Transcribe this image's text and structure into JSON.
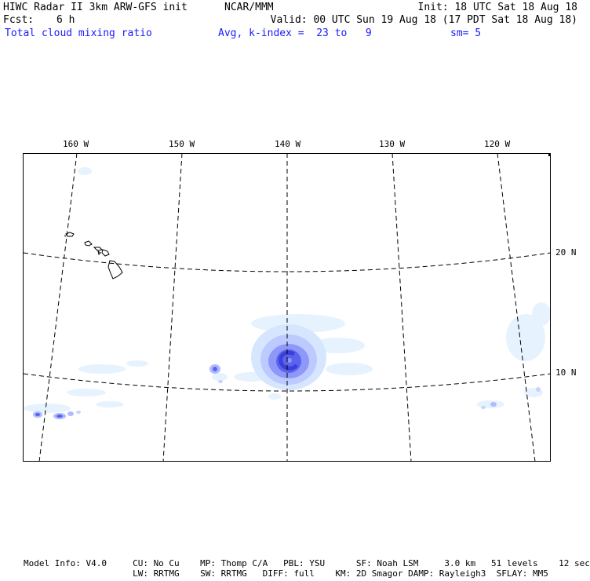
{
  "header": {
    "title": "HIWC Radar II 3km ARW-GFS init",
    "org": "NCAR/MMM",
    "init": "Init: 18 UTC Sat 18 Aug 18",
    "fcst_label": "Fcst:",
    "fcst_value": "6 h",
    "valid": "Valid: 00 UTC Sun 19 Aug 18 (17 PDT Sat 18 Aug 18)",
    "field": "Total cloud mixing ratio",
    "avg": "Avg, k-index =  23 to   9",
    "smoothing": "sm= 5"
  },
  "map": {
    "lon_labels": [
      "160 W",
      "150 W",
      "140 W",
      "130 W",
      "120 W"
    ],
    "lat_labels": [
      "20 N",
      "10 N"
    ],
    "colors": {
      "frame": "#000000",
      "cloud_light": "#e6f3ff",
      "cloud_mid": "#aebcff",
      "cloud_dark": "#5a63ee",
      "cloud_core": "#3b3fd8"
    }
  },
  "footer": {
    "line1": "Model Info: V4.0     CU: No Cu    MP: Thomp C/A   PBL: YSU      SF: Noah LSM     3.0 km   51 levels    12 sec",
    "line2": "                     LW: RRTMG    SW: RRTMG   DIFF: full    KM: 2D Smagor DAMP: Rayleigh3  SFLAY: MM5"
  }
}
